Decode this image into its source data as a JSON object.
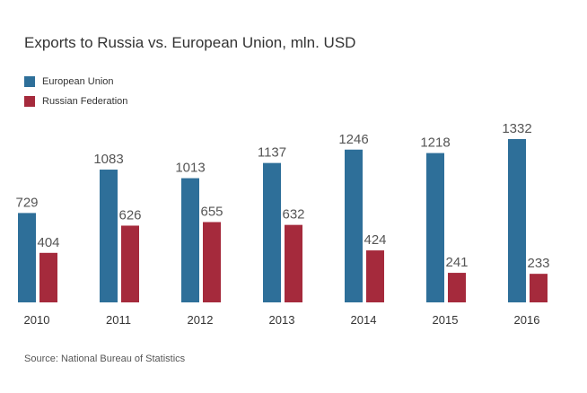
{
  "title": "Exports to Russia vs. European Union, mln. USD",
  "source": "Source: National Bureau of Statistics",
  "chart_data": {
    "type": "bar",
    "title": "Exports to Russia vs. European Union, mln. USD",
    "xlabel": "",
    "ylabel": "",
    "categories": [
      "2010",
      "2011",
      "2012",
      "2013",
      "2014",
      "2015",
      "2016"
    ],
    "series": [
      {
        "name": "European Union",
        "color": "#2e6f99",
        "values": [
          729,
          1083,
          1013,
          1137,
          1246,
          1218,
          1332
        ],
        "labels": [
          "729",
          "1083",
          "1013",
          "1137",
          "1246",
          "1218",
          "1332"
        ]
      },
      {
        "name": "Russian Federation",
        "color": "#a52a3c",
        "values": [
          404,
          626,
          655,
          632,
          424,
          241,
          233
        ],
        "labels": [
          "404",
          "626",
          "655",
          "632",
          "424",
          "241",
          "233"
        ]
      }
    ],
    "ylim": [
      0,
      1332
    ],
    "grid": false,
    "legend": "top-left",
    "data_labels": true
  }
}
